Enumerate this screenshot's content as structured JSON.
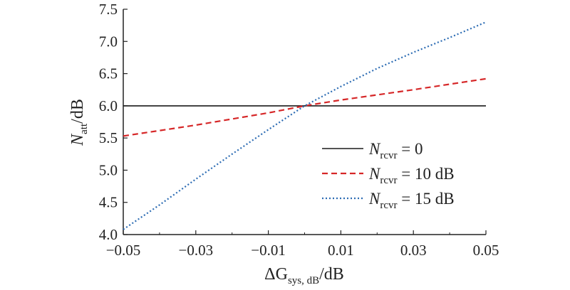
{
  "chart_data": {
    "type": "line",
    "title": "",
    "xlabel": {
      "prefix": "ΔG",
      "sub": "sys, dB",
      "suffix": "/dB"
    },
    "ylabel": {
      "main": "N",
      "sub": "att",
      "suffix": "/dB"
    },
    "xlim": [
      -0.05,
      0.05
    ],
    "ylim": [
      4.0,
      7.5
    ],
    "xticks": [
      -0.05,
      -0.03,
      -0.01,
      0.01,
      0.03,
      0.05
    ],
    "xtick_labels": [
      "−0.05",
      "−0.03",
      "−0.01",
      "0.01",
      "0.03",
      "0.05"
    ],
    "yticks": [
      4.0,
      4.5,
      5.0,
      5.5,
      6.0,
      6.5,
      7.0,
      7.5
    ],
    "ytick_labels": [
      "4.0",
      "4.5",
      "5.0",
      "5.5",
      "6.0",
      "6.5",
      "7.0",
      "7.5"
    ],
    "grid": false,
    "legend_position": "lower-right",
    "series": [
      {
        "legend": {
          "main": "N",
          "sub": "rcvr",
          "rest": " = 0"
        },
        "color": "#1a1a1a",
        "dash": "solid",
        "x": [
          -0.05,
          0.05
        ],
        "y": [
          6.0,
          6.0
        ]
      },
      {
        "legend": {
          "main": "N",
          "sub": "rcvr",
          "rest": " = 10 dB"
        },
        "color": "#d62728",
        "dash": "dashed",
        "x": [
          -0.05,
          -0.03,
          -0.01,
          0.0,
          0.01,
          0.03,
          0.05
        ],
        "y": [
          5.53,
          5.7,
          5.89,
          6.0,
          6.09,
          6.25,
          6.42
        ]
      },
      {
        "legend": {
          "main": "N",
          "sub": "rcvr",
          "rest": " = 15 dB"
        },
        "color": "#2e6db4",
        "dash": "dotted",
        "x": [
          -0.05,
          -0.04,
          -0.03,
          -0.02,
          -0.01,
          0.0,
          0.01,
          0.02,
          0.03,
          0.04,
          0.05
        ],
        "y": [
          4.08,
          4.46,
          4.86,
          5.25,
          5.63,
          6.0,
          6.3,
          6.58,
          6.83,
          7.06,
          7.3
        ]
      }
    ]
  }
}
